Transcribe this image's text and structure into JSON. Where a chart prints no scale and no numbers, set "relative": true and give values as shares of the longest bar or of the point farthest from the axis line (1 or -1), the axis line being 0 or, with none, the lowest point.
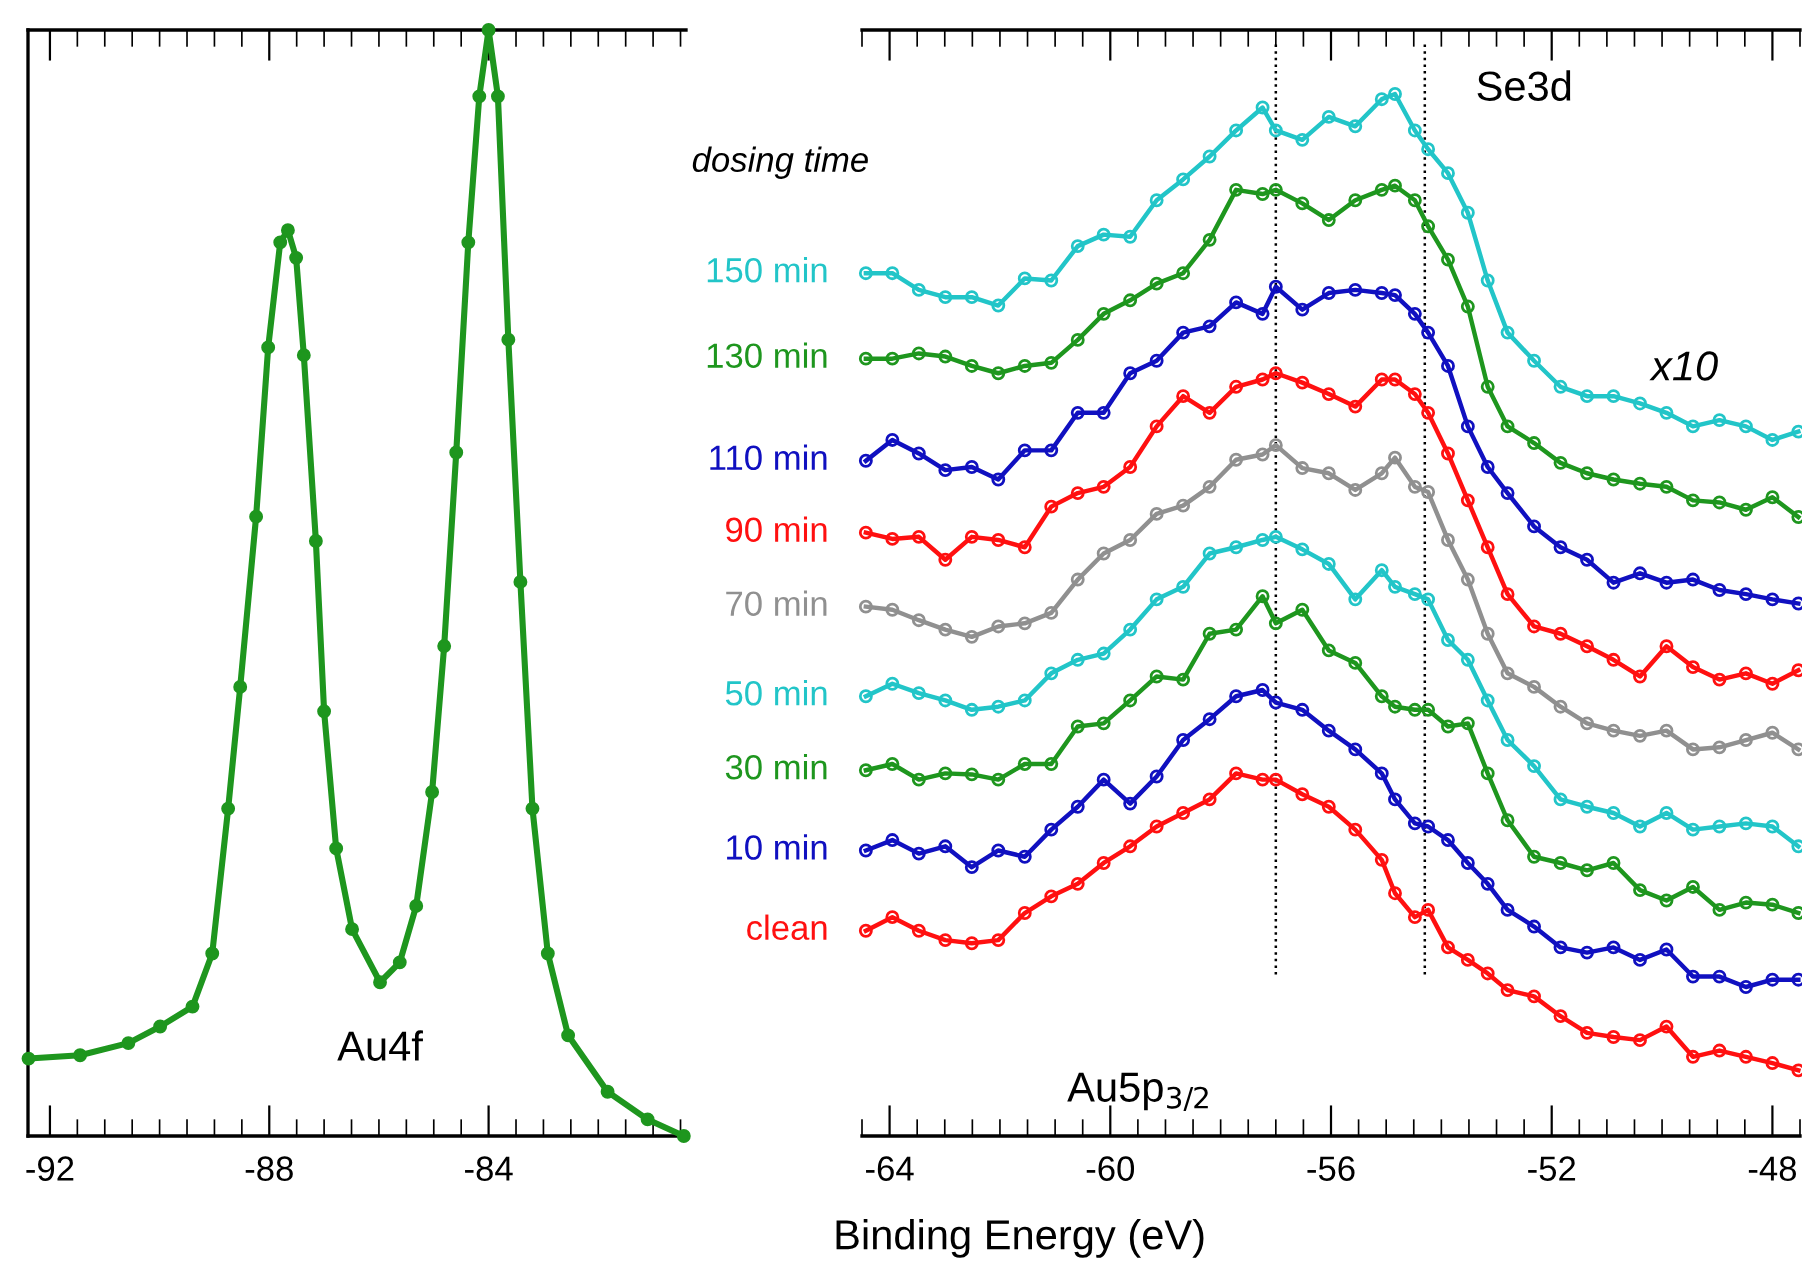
{
  "chart_data": [
    {
      "type": "line",
      "relative": true,
      "marker": "circle",
      "tick_labels": "x",
      "xlim": [
        -92.4,
        -80.4
      ],
      "xticks": [
        -92,
        -88,
        -84
      ],
      "annotations": [
        "Au4f"
      ],
      "x": [
        -92.39,
        -91.45,
        -90.57,
        -89.99,
        -89.4,
        -89.04,
        -88.75,
        -88.53,
        -88.24,
        -88.02,
        -87.8,
        -87.66,
        -87.51,
        -87.37,
        -87.15,
        -87.0,
        -86.78,
        -86.49,
        -85.98,
        -85.62,
        -85.32,
        -85.03,
        -84.81,
        -84.59,
        -84.37,
        -84.17,
        -84.0,
        -83.83,
        -83.64,
        -83.42,
        -83.2,
        -82.92,
        -82.55,
        -81.83,
        -81.1,
        -80.44
      ],
      "series": [
        {
          "color": "#1e961e",
          "values": [
            0.07,
            0.073,
            0.084,
            0.099,
            0.117,
            0.165,
            0.296,
            0.406,
            0.56,
            0.713,
            0.808,
            0.819,
            0.794,
            0.706,
            0.538,
            0.384,
            0.26,
            0.187,
            0.139,
            0.157,
            0.208,
            0.311,
            0.443,
            0.618,
            0.808,
            0.94,
            1,
            0.94,
            0.72,
            0.501,
            0.296,
            0.165,
            0.091,
            0.04,
            0.015,
            0
          ]
        }
      ]
    },
    {
      "type": "line",
      "relative": true,
      "marker": "circle",
      "tick_labels": "x",
      "xlim": [
        -64.5,
        -47.5
      ],
      "xticks": [
        -64,
        -60,
        -56,
        -52,
        -48
      ],
      "xlabel": "Binding Energy (eV)",
      "legend_title": "dosing time",
      "annotations": [
        "Se3d",
        "x10",
        "Au5p$_{3/2}$"
      ],
      "ref_lines": [
        {
          "axis": "x",
          "value": -57.0,
          "line_style": "dotted",
          "color": "#000000"
        },
        {
          "axis": "x",
          "value": -54.3,
          "line_style": "dotted",
          "color": "#000000"
        }
      ],
      "x": [
        -64.43,
        -63.95,
        -63.47,
        -62.99,
        -62.51,
        -62.03,
        -61.55,
        -61.07,
        -60.59,
        -60.12,
        -59.64,
        -59.16,
        -58.68,
        -58.2,
        -57.72,
        -57.24,
        -57.0,
        -56.52,
        -56.04,
        -55.56,
        -55.08,
        -54.84,
        -54.48,
        -54.24,
        -53.88,
        -53.52,
        -53.16,
        -52.8,
        -52.32,
        -51.84,
        -51.36,
        -50.88,
        -50.4,
        -49.92,
        -49.44,
        -48.96,
        -48.48,
        -48.0,
        -47.53
      ],
      "series": [
        {
          "name": "150 min",
          "color": "#22c5c8",
          "values": [
            0.828,
            0.828,
            0.812,
            0.805,
            0.805,
            0.797,
            0.823,
            0.821,
            0.854,
            0.865,
            0.863,
            0.898,
            0.918,
            0.94,
            0.965,
            0.987,
            0.965,
            0.956,
            0.978,
            0.969,
            0.995,
            1.0,
            0.965,
            0.947,
            0.924,
            0.886,
            0.821,
            0.771,
            0.744,
            0.719,
            0.71,
            0.71,
            0.703,
            0.694,
            0.681,
            0.687,
            0.681,
            0.668,
            0.676
          ]
        },
        {
          "name": "130 min",
          "color": "#1e961e",
          "values": [
            0.746,
            0.746,
            0.751,
            0.748,
            0.739,
            0.732,
            0.739,
            0.742,
            0.764,
            0.789,
            0.802,
            0.818,
            0.828,
            0.86,
            0.908,
            0.904,
            0.908,
            0.895,
            0.879,
            0.898,
            0.908,
            0.912,
            0.898,
            0.873,
            0.841,
            0.796,
            0.719,
            0.681,
            0.665,
            0.646,
            0.636,
            0.63,
            0.626,
            0.623,
            0.61,
            0.608,
            0.601,
            0.613,
            0.594
          ]
        },
        {
          "name": "110 min",
          "color": "#1010c0",
          "values": [
            0.648,
            0.668,
            0.655,
            0.639,
            0.642,
            0.63,
            0.658,
            0.658,
            0.694,
            0.694,
            0.732,
            0.744,
            0.771,
            0.777,
            0.8,
            0.789,
            0.815,
            0.793,
            0.809,
            0.812,
            0.809,
            0.807,
            0.789,
            0.771,
            0.739,
            0.681,
            0.642,
            0.617,
            0.585,
            0.565,
            0.553,
            0.531,
            0.54,
            0.531,
            0.534,
            0.524,
            0.52,
            0.515,
            0.511
          ]
        },
        {
          "name": "90 min",
          "color": "#ff1010",
          "values": [
            0.579,
            0.573,
            0.575,
            0.553,
            0.575,
            0.572,
            0.565,
            0.604,
            0.617,
            0.623,
            0.642,
            0.681,
            0.71,
            0.694,
            0.719,
            0.726,
            0.732,
            0.723,
            0.712,
            0.7,
            0.726,
            0.726,
            0.712,
            0.694,
            0.655,
            0.61,
            0.565,
            0.52,
            0.489,
            0.482,
            0.47,
            0.457,
            0.441,
            0.47,
            0.45,
            0.438,
            0.444,
            0.434,
            0.447
          ]
        },
        {
          "name": "70 min",
          "color": "#909090",
          "values": [
            0.508,
            0.505,
            0.495,
            0.486,
            0.479,
            0.489,
            0.492,
            0.502,
            0.534,
            0.559,
            0.572,
            0.597,
            0.605,
            0.623,
            0.649,
            0.654,
            0.663,
            0.641,
            0.636,
            0.62,
            0.636,
            0.651,
            0.623,
            0.618,
            0.572,
            0.534,
            0.482,
            0.444,
            0.431,
            0.412,
            0.396,
            0.389,
            0.384,
            0.389,
            0.371,
            0.373,
            0.38,
            0.387,
            0.371
          ]
        },
        {
          "name": "50 min",
          "color": "#22c5c8",
          "values": [
            0.422,
            0.434,
            0.425,
            0.418,
            0.409,
            0.412,
            0.418,
            0.444,
            0.457,
            0.463,
            0.486,
            0.515,
            0.527,
            0.559,
            0.565,
            0.572,
            0.575,
            0.563,
            0.549,
            0.515,
            0.543,
            0.527,
            0.52,
            0.515,
            0.476,
            0.457,
            0.418,
            0.38,
            0.355,
            0.323,
            0.316,
            0.31,
            0.297,
            0.31,
            0.294,
            0.297,
            0.3,
            0.297,
            0.278
          ]
        },
        {
          "name": "30 min",
          "color": "#1e961e",
          "values": [
            0.351,
            0.357,
            0.342,
            0.348,
            0.347,
            0.342,
            0.357,
            0.357,
            0.393,
            0.396,
            0.418,
            0.441,
            0.438,
            0.482,
            0.486,
            0.518,
            0.492,
            0.505,
            0.466,
            0.454,
            0.422,
            0.412,
            0.409,
            0.409,
            0.393,
            0.396,
            0.348,
            0.303,
            0.268,
            0.262,
            0.255,
            0.262,
            0.236,
            0.226,
            0.239,
            0.217,
            0.224,
            0.222,
            0.214
          ]
        },
        {
          "name": "10 min",
          "color": "#1010c0",
          "values": [
            0.274,
            0.284,
            0.271,
            0.278,
            0.258,
            0.274,
            0.268,
            0.294,
            0.316,
            0.342,
            0.319,
            0.345,
            0.38,
            0.4,
            0.422,
            0.428,
            0.416,
            0.409,
            0.389,
            0.371,
            0.348,
            0.323,
            0.3,
            0.297,
            0.284,
            0.262,
            0.242,
            0.217,
            0.201,
            0.181,
            0.176,
            0.181,
            0.169,
            0.179,
            0.153,
            0.153,
            0.143,
            0.15,
            0.15
          ]
        },
        {
          "name": "clean",
          "color": "#ff1010",
          "values": [
            0.197,
            0.21,
            0.197,
            0.188,
            0.185,
            0.188,
            0.214,
            0.23,
            0.242,
            0.262,
            0.278,
            0.297,
            0.31,
            0.323,
            0.348,
            0.342,
            0.342,
            0.328,
            0.316,
            0.294,
            0.265,
            0.233,
            0.21,
            0.217,
            0.181,
            0.169,
            0.156,
            0.14,
            0.134,
            0.115,
            0.099,
            0.095,
            0.092,
            0.105,
            0.076,
            0.082,
            0.076,
            0.07,
            0.063
          ]
        }
      ]
    }
  ]
}
